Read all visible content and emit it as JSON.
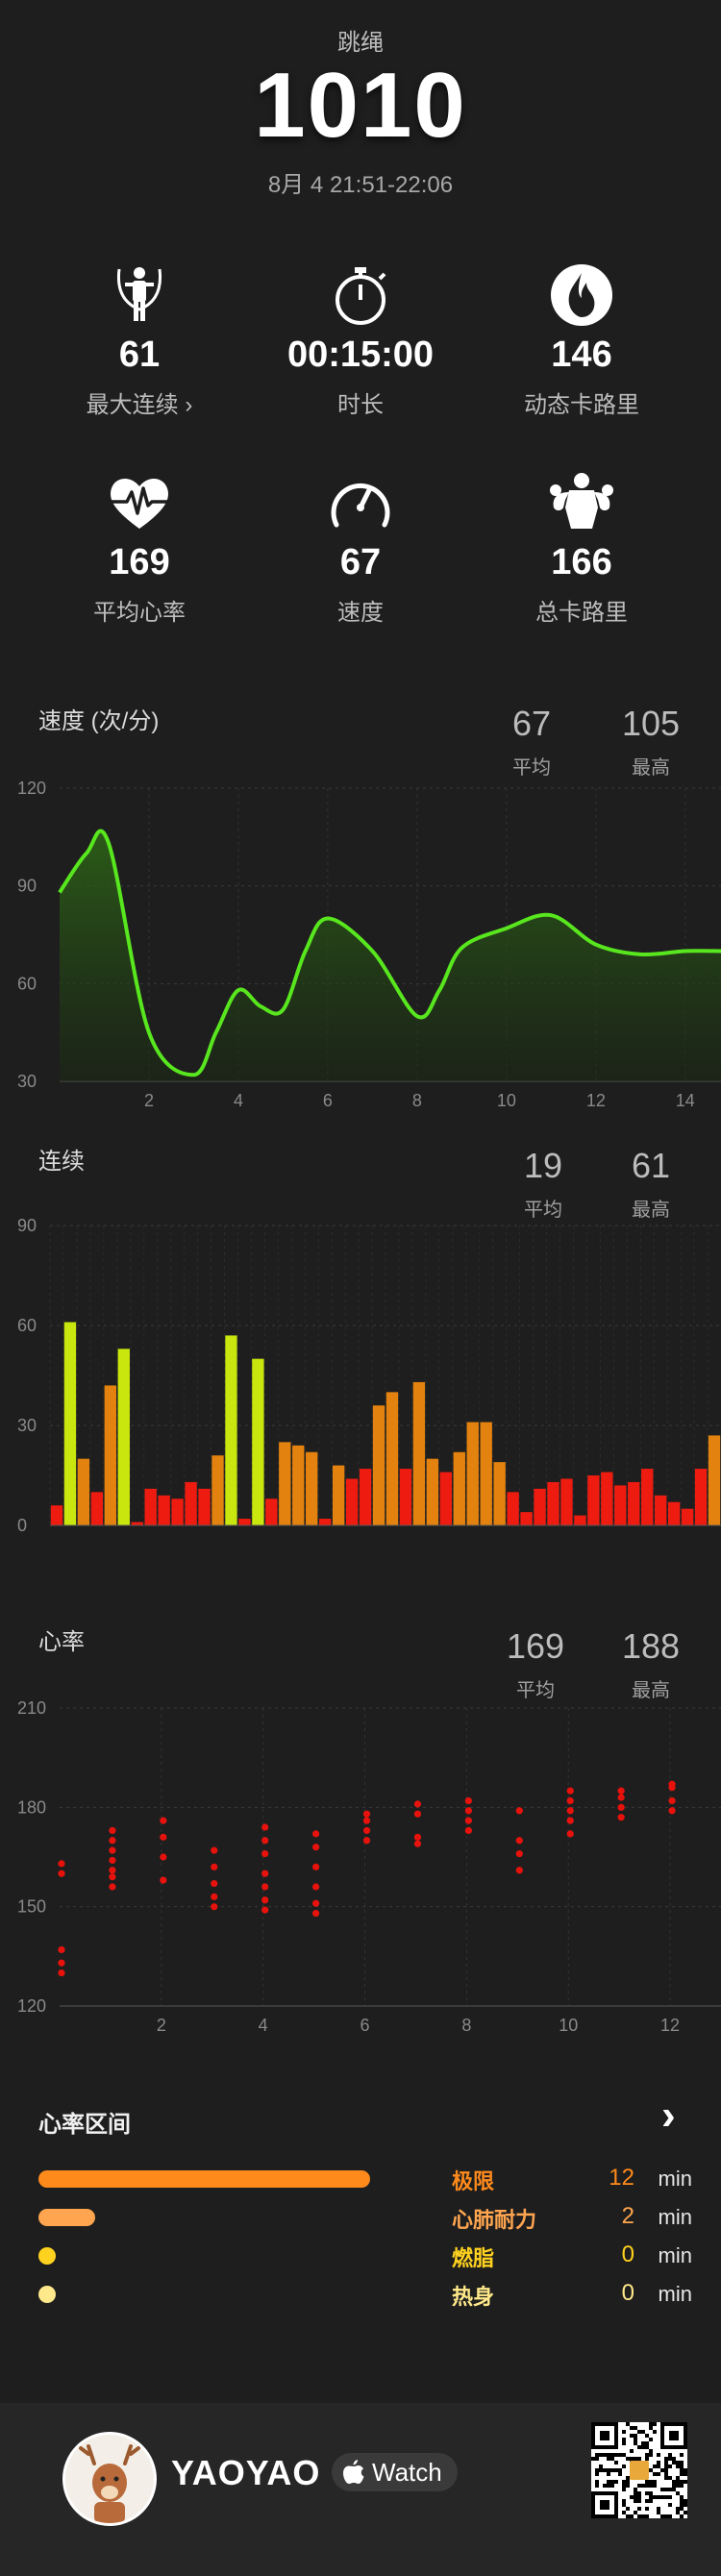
{
  "header": {
    "activity": "跳绳",
    "count": "1010",
    "time_range": "8月 4 21:51-22:06"
  },
  "stats": [
    {
      "icon": "jump-rope-icon",
      "value": "61",
      "label": "最大连续 ›"
    },
    {
      "icon": "stopwatch-icon",
      "value": "00:15:00",
      "label": "时长"
    },
    {
      "icon": "flame-icon",
      "value": "146",
      "label": "动态卡路里"
    },
    {
      "icon": "heartbeat-icon",
      "value": "169",
      "label": "平均心率"
    },
    {
      "icon": "speedometer-icon",
      "value": "67",
      "label": "速度"
    },
    {
      "icon": "muscle-icon",
      "value": "166",
      "label": "总卡路里"
    }
  ],
  "speed_section": {
    "title": "速度 (次/分)",
    "avg": "67",
    "avg_label": "平均",
    "max": "105",
    "max_label": "最高"
  },
  "streak_section": {
    "title": "连续",
    "avg": "19",
    "avg_label": "平均",
    "max": "61",
    "max_label": "最高"
  },
  "hr_section": {
    "title": "心率",
    "avg": "169",
    "avg_label": "平均",
    "max": "188",
    "max_label": "最高"
  },
  "chart_data": [
    {
      "type": "area",
      "id": "speed",
      "ylim": [
        30,
        120
      ],
      "xlim": [
        0,
        14.8
      ],
      "yticks": [
        "30",
        "60",
        "90",
        "120"
      ],
      "xticks": [
        "2",
        "4",
        "6",
        "8",
        "10",
        "12",
        "14"
      ],
      "color": "#58e61e",
      "x": [
        0,
        0.6,
        1.1,
        2,
        3,
        3.5,
        4,
        4.5,
        5,
        5.5,
        6,
        7,
        8,
        8.5,
        9,
        10,
        11,
        12,
        13,
        14,
        14.8
      ],
      "values": [
        88,
        100,
        103,
        45,
        32,
        45,
        58,
        53,
        52,
        70,
        80,
        70,
        50,
        58,
        71,
        77,
        81,
        72,
        69,
        70,
        70
      ]
    },
    {
      "type": "bar",
      "id": "streak",
      "ylim": [
        0,
        90
      ],
      "yticks": [
        "0",
        "30",
        "60",
        "90"
      ],
      "values": [
        6,
        61,
        20,
        10,
        42,
        53,
        1,
        11,
        9,
        8,
        13,
        11,
        21,
        57,
        2,
        50,
        8,
        25,
        24,
        22,
        2,
        18,
        14,
        17,
        36,
        40,
        17,
        43,
        20,
        16,
        22,
        31,
        31,
        19,
        10,
        4,
        11,
        13,
        14,
        3,
        15,
        16,
        12,
        13,
        17,
        9,
        7,
        5,
        17,
        27
      ],
      "colors": {
        "low": "#ee1c10",
        "mid": "#e3820e",
        "high": "#c9e60e"
      }
    },
    {
      "type": "scatter",
      "id": "heart_rate",
      "ylim": [
        120,
        210
      ],
      "xlim": [
        0,
        13
      ],
      "yticks": [
        "120",
        "150",
        "180",
        "210"
      ],
      "xticks": [
        "2",
        "4",
        "6",
        "8",
        "10",
        "12"
      ],
      "color": "#e8120d",
      "points": [
        [
          0,
          130
        ],
        [
          0,
          133
        ],
        [
          0,
          137
        ],
        [
          0,
          160
        ],
        [
          0,
          163
        ],
        [
          1,
          156
        ],
        [
          1,
          159
        ],
        [
          1,
          161
        ],
        [
          1,
          164
        ],
        [
          1,
          167
        ],
        [
          1,
          170
        ],
        [
          1,
          173
        ],
        [
          2,
          158
        ],
        [
          2,
          165
        ],
        [
          2,
          171
        ],
        [
          2,
          176
        ],
        [
          3,
          150
        ],
        [
          3,
          153
        ],
        [
          3,
          157
        ],
        [
          3,
          162
        ],
        [
          3,
          167
        ],
        [
          4,
          149
        ],
        [
          4,
          152
        ],
        [
          4,
          156
        ],
        [
          4,
          160
        ],
        [
          4,
          166
        ],
        [
          4,
          170
        ],
        [
          4,
          174
        ],
        [
          5,
          148
        ],
        [
          5,
          151
        ],
        [
          5,
          156
        ],
        [
          5,
          162
        ],
        [
          5,
          168
        ],
        [
          5,
          172
        ],
        [
          6,
          170
        ],
        [
          6,
          173
        ],
        [
          6,
          176
        ],
        [
          6,
          178
        ],
        [
          7,
          169
        ],
        [
          7,
          171
        ],
        [
          7,
          178
        ],
        [
          7,
          181
        ],
        [
          8,
          173
        ],
        [
          8,
          176
        ],
        [
          8,
          179
        ],
        [
          8,
          182
        ],
        [
          9,
          161
        ],
        [
          9,
          166
        ],
        [
          9,
          170
        ],
        [
          9,
          179
        ],
        [
          10,
          172
        ],
        [
          10,
          176
        ],
        [
          10,
          179
        ],
        [
          10,
          182
        ],
        [
          10,
          185
        ],
        [
          11,
          177
        ],
        [
          11,
          180
        ],
        [
          11,
          183
        ],
        [
          11,
          185
        ],
        [
          12,
          179
        ],
        [
          12,
          182
        ],
        [
          12,
          186
        ],
        [
          12,
          187
        ]
      ]
    }
  ],
  "zones": {
    "title": "心率区间",
    "chevron": "›",
    "items": [
      {
        "name": "极限",
        "value": "12",
        "unit": "min",
        "color": "#ff8a1c",
        "fraction": 1.0
      },
      {
        "name": "心肺耐力",
        "value": "2",
        "unit": "min",
        "color": "#ffa54f",
        "fraction": 0.17
      },
      {
        "name": "燃脂",
        "value": "0",
        "unit": "min",
        "color": "#ffd21f",
        "fraction": 0
      },
      {
        "name": "热身",
        "value": "0",
        "unit": "min",
        "color": "#ffe98a",
        "fraction": 0
      }
    ]
  },
  "footer": {
    "username": "YAOYAO",
    "watch_label": "Watch"
  }
}
